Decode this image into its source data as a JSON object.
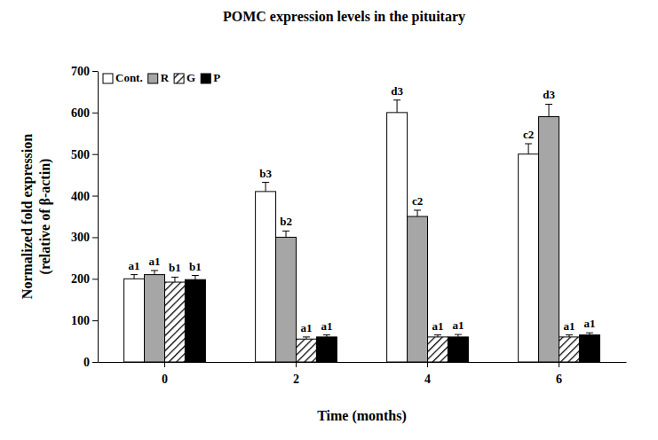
{
  "chart_data": {
    "type": "bar",
    "title": "POMC expression levels in the pituitary",
    "xlabel": "Time (months)",
    "ylabel": [
      "Normalized fold expression",
      "(relative of β-actin)"
    ],
    "categories": [
      "0",
      "2",
      "4",
      "6"
    ],
    "series": [
      {
        "name": "Cont.",
        "color": "#ffffff",
        "values": [
          200,
          410,
          600,
          500
        ],
        "errors": [
          10,
          22,
          30,
          25
        ],
        "annotations": [
          "a1",
          "b3",
          "d3",
          "c2"
        ]
      },
      {
        "name": "R",
        "color": "#a6a6a6",
        "values": [
          210,
          300,
          350,
          590
        ],
        "errors": [
          10,
          15,
          15,
          30
        ],
        "annotations": [
          "a1",
          "b2",
          "c2",
          "d3"
        ]
      },
      {
        "name": "G",
        "color": "#ffffff",
        "line_style": "hatched",
        "values": [
          192,
          55,
          60,
          60
        ],
        "errors": [
          12,
          5,
          5,
          5
        ],
        "annotations": [
          "b1",
          "a1",
          "a1",
          "a1"
        ]
      },
      {
        "name": "P",
        "color": "#000000",
        "values": [
          198,
          60,
          60,
          65
        ],
        "errors": [
          10,
          5,
          6,
          5
        ],
        "annotations": [
          "b1",
          "a1",
          "a1",
          "a1"
        ]
      }
    ],
    "ylim": [
      0,
      700
    ],
    "yticks": [
      0,
      100,
      200,
      300,
      400,
      500,
      600,
      700
    ],
    "grid": false,
    "legend": "upper left"
  }
}
